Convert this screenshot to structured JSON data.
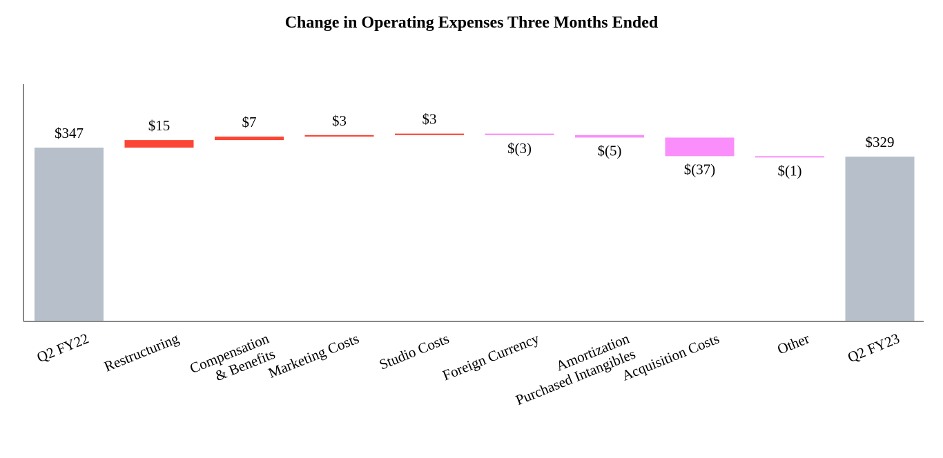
{
  "chart_data": {
    "type": "bar",
    "subtype": "waterfall",
    "title": "Change in Operating Expenses Three Months Ended",
    "xlabel": "",
    "ylabel": "",
    "ylim": [
      0,
      400
    ],
    "grid": false,
    "categories": [
      [
        "Q2 FY22"
      ],
      [
        "Restructuring"
      ],
      [
        "Compensation",
        "& Benefits"
      ],
      [
        "Marketing Costs"
      ],
      [
        "Studio Costs"
      ],
      [
        "Foreign Currency"
      ],
      [
        "Amortization",
        "Purchased Intangibles"
      ],
      [
        "Acquisition Costs"
      ],
      [
        "Other"
      ],
      [
        "Q2 FY23"
      ]
    ],
    "values": [
      347,
      15,
      7,
      3,
      3,
      -3,
      -5,
      -37,
      -1,
      329
    ],
    "kinds": [
      "total",
      "delta",
      "delta",
      "delta",
      "delta",
      "delta",
      "delta",
      "delta",
      "delta",
      "total"
    ],
    "data_labels": [
      "$347",
      "$15",
      "$7",
      "$3",
      "$3",
      "$(3)",
      "$(5)",
      "$(37)",
      "$(1)",
      "$329"
    ],
    "colors": {
      "total": "#b7c0ca",
      "increase": "#fc4535",
      "decrease": "#fa8efa",
      "axis": "#888888"
    }
  }
}
